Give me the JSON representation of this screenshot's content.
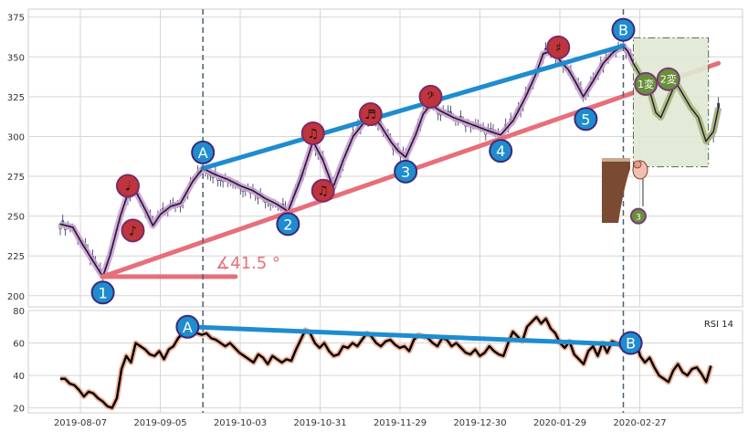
{
  "chart_data": [
    {
      "type": "candlestick",
      "title": "",
      "xlabel": "",
      "ylabel": "",
      "ylim": [
        193,
        380
      ],
      "y_ticks": [
        200,
        225,
        250,
        275,
        300,
        325,
        350,
        375
      ],
      "x_tick_labels": [
        "2019-08-07",
        "2019-09-05",
        "2019-10-03",
        "2019-10-31",
        "2019-11-29",
        "2019-12-30",
        "2020-01-29",
        "2020-02-27"
      ],
      "grid": true,
      "close_path": [
        [
          0,
          245
        ],
        [
          5,
          243
        ],
        [
          9,
          232
        ],
        [
          13,
          222
        ],
        [
          17,
          212
        ],
        [
          20,
          226
        ],
        [
          24,
          250
        ],
        [
          27,
          264
        ],
        [
          30,
          266
        ],
        [
          34,
          254
        ],
        [
          37,
          244
        ],
        [
          40,
          251
        ],
        [
          44,
          256
        ],
        [
          48,
          258
        ],
        [
          53,
          272
        ],
        [
          57,
          280
        ],
        [
          62,
          276
        ],
        [
          67,
          273
        ],
        [
          72,
          269
        ],
        [
          77,
          266
        ],
        [
          82,
          261
        ],
        [
          86,
          258
        ],
        [
          91,
          253
        ],
        [
          96,
          273
        ],
        [
          101,
          297
        ],
        [
          105,
          285
        ],
        [
          109,
          268
        ],
        [
          113,
          285
        ],
        [
          117,
          300
        ],
        [
          121,
          308
        ],
        [
          124,
          314
        ],
        [
          128,
          307
        ],
        [
          132,
          297
        ],
        [
          135,
          291
        ],
        [
          138,
          287
        ],
        [
          142,
          301
        ],
        [
          145,
          314
        ],
        [
          148,
          320
        ],
        [
          152,
          316
        ],
        [
          157,
          312
        ],
        [
          162,
          309
        ],
        [
          167,
          306
        ],
        [
          172,
          303
        ],
        [
          176,
          301
        ],
        [
          181,
          310
        ],
        [
          186,
          325
        ],
        [
          190,
          339
        ],
        [
          193,
          352
        ],
        [
          197,
          354
        ],
        [
          200,
          347
        ],
        [
          203,
          342
        ],
        [
          206,
          334
        ],
        [
          209,
          325
        ],
        [
          213,
          335
        ],
        [
          217,
          346
        ],
        [
          221,
          353
        ],
        [
          225,
          357
        ],
        [
          227,
          353
        ],
        [
          229,
          346
        ],
        [
          232,
          338
        ],
        [
          234,
          332
        ],
        [
          236,
          326
        ],
        [
          238,
          315
        ],
        [
          240,
          312
        ],
        [
          243,
          323
        ],
        [
          246,
          334
        ],
        [
          249,
          326
        ],
        [
          252,
          318
        ],
        [
          255,
          312
        ],
        [
          258,
          297
        ],
        [
          261,
          303
        ],
        [
          263,
          318
        ]
      ],
      "trend_lines": [
        {
          "name": "upper",
          "from": [
            57,
            280
          ],
          "to": [
            225,
            357
          ],
          "color": "#1f8ccf"
        },
        {
          "name": "lower",
          "from": [
            17,
            212
          ],
          "to": [
            263,
            346
          ],
          "color": "#e76f7a"
        },
        {
          "name": "base",
          "from": [
            17,
            212
          ],
          "to": [
            70,
            212
          ],
          "color": "#e76f7a"
        }
      ],
      "angle_label": "∡41.5 °",
      "pivot_labels": [
        {
          "label": "1",
          "x": 17,
          "y": 202,
          "color": "#1f8ccf"
        },
        {
          "label": "2",
          "x": 91,
          "y": 245,
          "color": "#1f8ccf"
        },
        {
          "label": "3",
          "x": 138,
          "y": 278,
          "color": "#1f8ccf"
        },
        {
          "label": "4",
          "x": 176,
          "y": 291,
          "color": "#1f8ccf"
        },
        {
          "label": "5",
          "x": 210,
          "y": 311,
          "color": "#1f8ccf"
        },
        {
          "label": "A",
          "x": 57,
          "y": 290,
          "color": "#1f8ccf"
        },
        {
          "label": "B",
          "x": 225,
          "y": 367,
          "color": "#1f8ccf"
        }
      ],
      "note_markers": [
        {
          "symbol": "𝅘𝅥",
          "x": 27,
          "y": 269
        },
        {
          "symbol": "♪",
          "x": 29,
          "y": 241
        },
        {
          "symbol": "♫",
          "x": 101,
          "y": 302
        },
        {
          "symbol": "♫",
          "x": 105,
          "y": 266
        },
        {
          "symbol": "♬",
          "x": 124,
          "y": 314
        },
        {
          "symbol": "𝄢",
          "x": 148,
          "y": 325
        },
        {
          "symbol": "♯",
          "x": 199,
          "y": 356
        }
      ],
      "projection_labels": [
        {
          "label": "1変",
          "x": 234,
          "y": 333
        },
        {
          "label": "2変",
          "x": 243,
          "y": 336
        },
        {
          "label": "3",
          "x": 231,
          "y": 250
        }
      ],
      "vertical_markers_x": [
        57,
        225
      ],
      "colors": {
        "up_line": "#1f8ccf",
        "down_line": "#e76f7a",
        "path_glow": "#c9a0d3",
        "note": "#c0343b",
        "projection": "#6a8f3a"
      }
    },
    {
      "type": "line",
      "title": "",
      "legend": "RSI 14",
      "ylim": [
        17,
        80
      ],
      "y_ticks": [
        20,
        40,
        60,
        80
      ],
      "values": [
        38,
        38,
        35,
        34,
        31,
        27,
        30,
        29,
        26,
        24,
        21,
        20,
        26,
        44,
        52,
        48,
        60,
        58,
        56,
        53,
        52,
        55,
        50,
        56,
        58,
        63,
        66,
        68,
        70,
        66,
        65,
        66,
        63,
        62,
        60,
        58,
        60,
        57,
        54,
        52,
        50,
        48,
        53,
        51,
        47,
        52,
        50,
        48,
        50,
        49,
        56,
        62,
        68,
        66,
        60,
        57,
        60,
        55,
        52,
        53,
        58,
        57,
        60,
        58,
        62,
        66,
        64,
        60,
        58,
        61,
        62,
        59,
        57,
        58,
        55,
        62,
        65,
        64,
        63,
        60,
        58,
        63,
        62,
        58,
        60,
        57,
        54,
        53,
        56,
        52,
        54,
        58,
        55,
        53,
        52,
        60,
        67,
        64,
        61,
        70,
        73,
        76,
        72,
        75,
        69,
        66,
        60,
        57,
        61,
        53,
        50,
        47,
        55,
        58,
        52,
        60,
        54,
        61,
        60,
        58,
        61,
        59,
        62,
        52,
        48,
        51,
        45,
        40,
        38,
        36,
        43,
        47,
        42,
        40,
        44,
        45,
        41,
        36,
        46
      ],
      "trend_line": {
        "from_index": 27,
        "from": 70,
        "to_index": 121,
        "to": 59,
        "color": "#1f8ccf"
      },
      "pivot_labels": [
        {
          "label": "A",
          "index": 27,
          "y": 70
        },
        {
          "label": "B",
          "index": 121,
          "y": 60
        }
      ],
      "colors": {
        "line": "#000000",
        "glow": "#f2b49a"
      }
    }
  ]
}
